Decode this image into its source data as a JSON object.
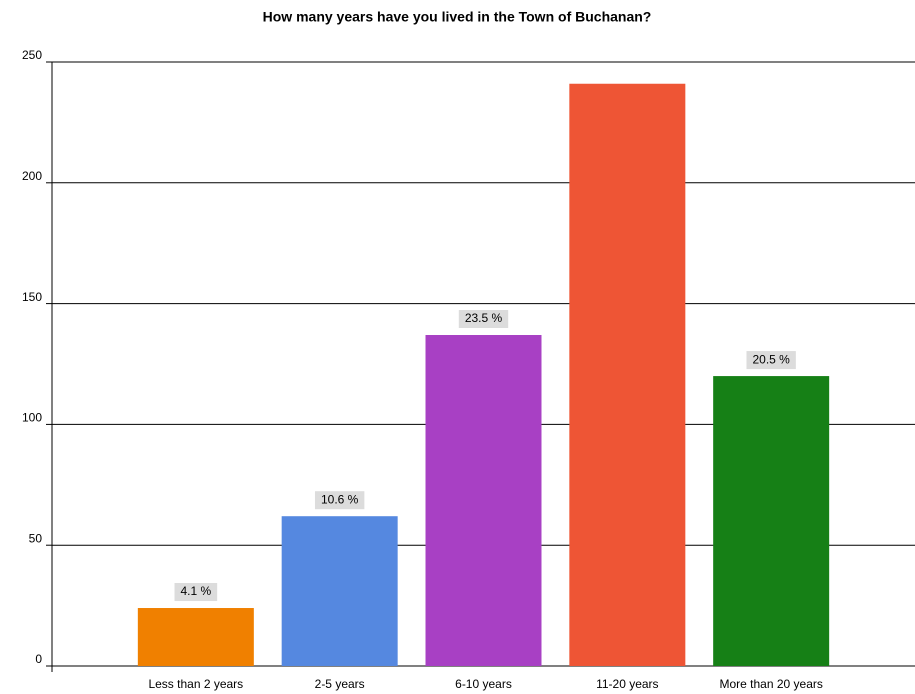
{
  "chart_data": {
    "type": "bar",
    "title": "How many years have you lived in the Town of Buchanan?",
    "categories": [
      "Less than 2 years",
      "2-5 years",
      "6-10 years",
      "11-20 years",
      "More than 20 years"
    ],
    "values": [
      24,
      62,
      137,
      241,
      120
    ],
    "value_labels": [
      "4.1 %",
      "10.6 %",
      "23.5 %",
      null,
      "20.5 %"
    ],
    "colors": [
      "#f08000",
      "#5588e0",
      "#a840c4",
      "#ee5535",
      "#168016"
    ],
    "ylim": [
      0,
      250
    ],
    "yticks": [
      0,
      50,
      100,
      150,
      200,
      250
    ],
    "grid": true
  }
}
